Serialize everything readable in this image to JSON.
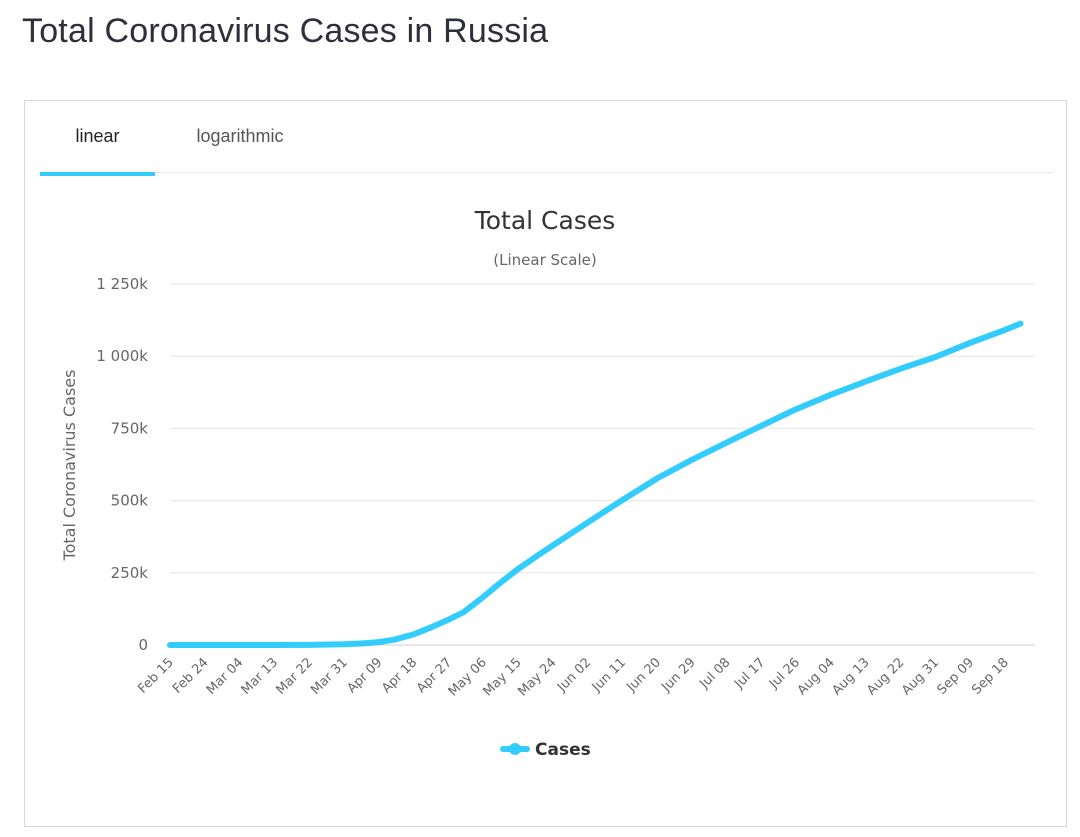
{
  "page": {
    "title": "Total Coronavirus Cases in Russia"
  },
  "tabs": [
    {
      "label": "linear",
      "active": true
    },
    {
      "label": "logarithmic",
      "active": false
    }
  ],
  "colors": {
    "accent": "#33ccff",
    "title": "#2e2f3a",
    "grid": "#e6e6e6"
  },
  "chart_data": {
    "type": "line",
    "title": "Total Cases",
    "subtitle": "(Linear Scale)",
    "ylabel": "Total Coronavirus Cases",
    "xlabel": "",
    "ylim": [
      0,
      1250000
    ],
    "yticks": [
      0,
      250000,
      500000,
      750000,
      1000000,
      1250000
    ],
    "ytick_labels": [
      "0",
      "250k",
      "500k",
      "750k",
      "1 000k",
      "1 250k"
    ],
    "xtick_labels": [
      "Feb 15",
      "Feb 24",
      "Mar 04",
      "Mar 13",
      "Mar 22",
      "Mar 31",
      "Apr 09",
      "Apr 18",
      "Apr 27",
      "May 06",
      "May 15",
      "May 24",
      "Jun 02",
      "Jun 11",
      "Jun 20",
      "Jun 29",
      "Jul 08",
      "Jul 17",
      "Jul 26",
      "Aug 04",
      "Aug 13",
      "Aug 22",
      "Aug 31",
      "Sep 09",
      "Sep 18"
    ],
    "grid": true,
    "legend": "bottom-center",
    "series": [
      {
        "name": "Cases",
        "color": "#33ccff",
        "x": [
          "Feb 15",
          "Feb 24",
          "Mar 04",
          "Mar 13",
          "Mar 22",
          "Mar 31",
          "Apr 05",
          "Apr 09",
          "Apr 13",
          "Apr 18",
          "Apr 22",
          "Apr 27",
          "May 01",
          "May 06",
          "May 11",
          "May 15",
          "May 20",
          "May 24",
          "Jun 02",
          "Jun 11",
          "Jun 20",
          "Jun 29",
          "Jul 08",
          "Jul 17",
          "Jul 26",
          "Aug 04",
          "Aug 13",
          "Aug 22",
          "Aug 31",
          "Sep 09",
          "Sep 18",
          "Sep 22"
        ],
        "values": [
          2,
          2,
          3,
          10,
          367,
          2337,
          5389,
          10131,
          18328,
          36793,
          57999,
          87147,
          114431,
          165929,
          221344,
          262843,
          308705,
          344481,
          423741,
          501800,
          576952,
          641156,
          700792,
          759203,
          816680,
          866627,
          912823,
          956749,
          997072,
          1046370,
          1091186,
          1113032
        ]
      }
    ]
  }
}
